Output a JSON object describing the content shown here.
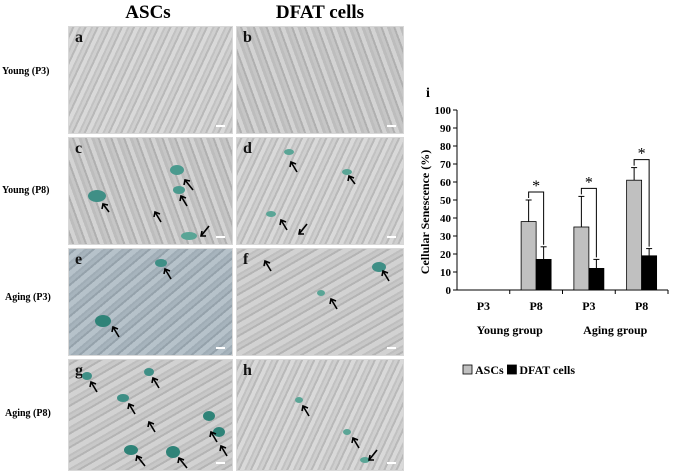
{
  "figure": {
    "col_headers": [
      "ASCs",
      "DFAT cells"
    ],
    "row_labels": [
      "Young (P3)",
      "Young (P8)",
      "Aging  (P3)",
      "Aging  (P8)"
    ],
    "panels": [
      {
        "label": "a"
      },
      {
        "label": "b"
      },
      {
        "label": "c"
      },
      {
        "label": "d"
      },
      {
        "label": "e"
      },
      {
        "label": "f"
      },
      {
        "label": "g"
      },
      {
        "label": "h"
      }
    ]
  },
  "chart_data": {
    "type": "bar",
    "panel_label": "i",
    "categories": [
      "P3",
      "P8",
      "P3",
      "P8"
    ],
    "groups": [
      "Young group",
      "Aging group"
    ],
    "series": [
      {
        "name": "ASCs",
        "color": "#c0c0c0",
        "values": [
          0,
          38,
          35,
          61
        ],
        "errors": [
          0,
          12,
          17,
          7
        ]
      },
      {
        "name": "DFAT cells",
        "color": "#000000",
        "values": [
          0,
          17,
          12,
          19
        ],
        "errors": [
          0,
          7,
          5,
          4
        ]
      }
    ],
    "significance": [
      "",
      "*",
      "*",
      "*"
    ],
    "ylabel": "Cellular Senescence (%)",
    "ylim": [
      0,
      100
    ],
    "yticks": [
      "0",
      "10",
      "20",
      "30",
      "40",
      "50",
      "60",
      "70",
      "80",
      "90",
      "100"
    ],
    "legend": {
      "position": "bottom"
    }
  }
}
